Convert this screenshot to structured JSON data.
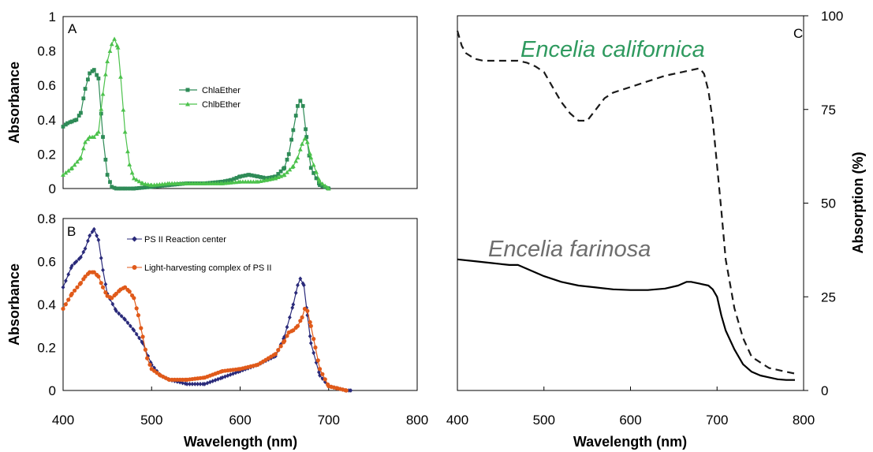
{
  "chart_data": [
    {
      "panel": "A",
      "type": "line",
      "xlabel": "",
      "ylabel": "Absorbance",
      "xlim": [
        400,
        800
      ],
      "ylim": [
        0,
        1
      ],
      "yticks": [
        "0",
        "0.2",
        "0.4",
        "0.6",
        "0.8",
        "1"
      ],
      "legend": "upper-middle",
      "series": [
        {
          "name": "ChlaEther",
          "color": "#2e8b57",
          "marker": "square",
          "x": [
            400,
            405,
            410,
            415,
            420,
            425,
            430,
            435,
            440,
            445,
            450,
            455,
            460,
            465,
            470,
            480,
            500,
            520,
            540,
            560,
            580,
            590,
            600,
            610,
            620,
            630,
            640,
            650,
            655,
            660,
            665,
            668,
            671,
            675,
            680,
            690,
            700
          ],
          "y": [
            0.36,
            0.38,
            0.39,
            0.4,
            0.44,
            0.58,
            0.67,
            0.69,
            0.64,
            0.3,
            0.08,
            0.01,
            0.0,
            0.0,
            0.0,
            0.0,
            0.01,
            0.02,
            0.03,
            0.03,
            0.04,
            0.05,
            0.07,
            0.08,
            0.07,
            0.06,
            0.07,
            0.12,
            0.2,
            0.34,
            0.48,
            0.51,
            0.48,
            0.3,
            0.12,
            0.02,
            0.0
          ]
        },
        {
          "name": "ChlbEther",
          "color": "#4cc24c",
          "marker": "triangle",
          "x": [
            400,
            410,
            420,
            425,
            430,
            435,
            440,
            445,
            450,
            455,
            458,
            462,
            465,
            470,
            475,
            480,
            490,
            500,
            520,
            540,
            560,
            580,
            600,
            620,
            630,
            640,
            650,
            660,
            665,
            670,
            673,
            676,
            680,
            690,
            700
          ],
          "y": [
            0.08,
            0.12,
            0.18,
            0.27,
            0.3,
            0.3,
            0.33,
            0.55,
            0.74,
            0.84,
            0.87,
            0.82,
            0.65,
            0.33,
            0.14,
            0.06,
            0.03,
            0.02,
            0.03,
            0.03,
            0.03,
            0.03,
            0.04,
            0.04,
            0.05,
            0.06,
            0.08,
            0.13,
            0.18,
            0.26,
            0.29,
            0.27,
            0.18,
            0.04,
            0.0
          ]
        }
      ]
    },
    {
      "panel": "B",
      "type": "line",
      "xlabel": "Wavelength (nm)",
      "ylabel": "Absorbance",
      "xlim": [
        400,
        800
      ],
      "ylim": [
        0,
        0.8
      ],
      "xticks": [
        "400",
        "500",
        "600",
        "700",
        "800"
      ],
      "yticks": [
        "0",
        "0.2",
        "0.4",
        "0.6",
        "0.8"
      ],
      "legend": "upper-middle",
      "series": [
        {
          "name": "PS II Reaction center",
          "color": "#2a2a7a",
          "marker": "diamond",
          "x": [
            400,
            410,
            415,
            420,
            425,
            430,
            435,
            440,
            445,
            450,
            460,
            470,
            480,
            490,
            500,
            510,
            520,
            540,
            560,
            580,
            600,
            620,
            640,
            650,
            660,
            665,
            668,
            672,
            676,
            680,
            690,
            700,
            710,
            720,
            725
          ],
          "y": [
            0.48,
            0.58,
            0.6,
            0.62,
            0.66,
            0.72,
            0.75,
            0.7,
            0.56,
            0.45,
            0.37,
            0.33,
            0.28,
            0.22,
            0.12,
            0.07,
            0.05,
            0.03,
            0.03,
            0.06,
            0.09,
            0.12,
            0.16,
            0.25,
            0.4,
            0.49,
            0.52,
            0.49,
            0.35,
            0.22,
            0.07,
            0.02,
            0.01,
            0.0,
            0.0
          ]
        },
        {
          "name": "Light-harvesting complex of PS II",
          "color": "#e05a1a",
          "marker": "circle",
          "x": [
            400,
            410,
            420,
            425,
            430,
            435,
            440,
            445,
            450,
            455,
            460,
            465,
            470,
            475,
            480,
            485,
            490,
            495,
            500,
            510,
            520,
            540,
            560,
            580,
            600,
            620,
            640,
            650,
            655,
            660,
            665,
            670,
            673,
            676,
            680,
            685,
            690,
            700,
            710,
            720
          ],
          "y": [
            0.38,
            0.45,
            0.5,
            0.53,
            0.55,
            0.55,
            0.53,
            0.48,
            0.44,
            0.43,
            0.45,
            0.47,
            0.48,
            0.46,
            0.43,
            0.35,
            0.25,
            0.15,
            0.1,
            0.07,
            0.05,
            0.05,
            0.06,
            0.09,
            0.1,
            0.12,
            0.17,
            0.23,
            0.27,
            0.28,
            0.3,
            0.34,
            0.38,
            0.37,
            0.3,
            0.2,
            0.1,
            0.02,
            0.01,
            0.0
          ]
        }
      ]
    },
    {
      "panel": "C",
      "type": "line",
      "xlabel": "Wavelength (nm)",
      "ylabel": "Absorption (%)",
      "xlim": [
        400,
        800
      ],
      "ylim": [
        0,
        100
      ],
      "xticks": [
        "400",
        "500",
        "600",
        "700",
        "800"
      ],
      "yticks": [
        "0",
        "25",
        "50",
        "75",
        "100"
      ],
      "yaxis_side": "right",
      "series": [
        {
          "name": "Encelia californica",
          "color": "#1a1a1a",
          "label_color": "#2f9a5f",
          "style": "dashed",
          "x": [
            400,
            405,
            410,
            420,
            430,
            440,
            460,
            470,
            480,
            490,
            500,
            510,
            520,
            530,
            540,
            550,
            560,
            570,
            580,
            600,
            620,
            640,
            660,
            670,
            680,
            685,
            690,
            695,
            700,
            705,
            710,
            720,
            730,
            740,
            760,
            780,
            790
          ],
          "y": [
            96,
            92,
            90,
            88.5,
            88,
            88,
            88,
            88,
            87.5,
            86.5,
            85,
            81,
            77,
            74,
            72,
            72,
            75,
            78,
            79.5,
            81,
            82.5,
            84,
            85,
            85.5,
            86,
            84.5,
            80,
            72,
            60,
            48,
            35,
            22,
            14,
            9,
            6,
            5,
            4.5
          ]
        },
        {
          "name": "Encelia farinosa",
          "color": "#000000",
          "label_color": "#6e6e6e",
          "style": "solid",
          "x": [
            400,
            420,
            440,
            460,
            470,
            480,
            500,
            520,
            540,
            560,
            580,
            600,
            620,
            640,
            655,
            665,
            670,
            680,
            690,
            695,
            700,
            705,
            710,
            720,
            730,
            740,
            750,
            760,
            770,
            780,
            790
          ],
          "y": [
            35,
            34.5,
            34,
            33.5,
            33.5,
            32.5,
            30.5,
            29,
            28,
            27.5,
            27,
            26.8,
            26.8,
            27.2,
            28,
            29,
            29,
            28.5,
            28,
            27,
            25,
            20,
            16,
            11,
            7,
            5,
            4,
            3.5,
            3,
            2.8,
            2.8
          ]
        }
      ]
    }
  ]
}
